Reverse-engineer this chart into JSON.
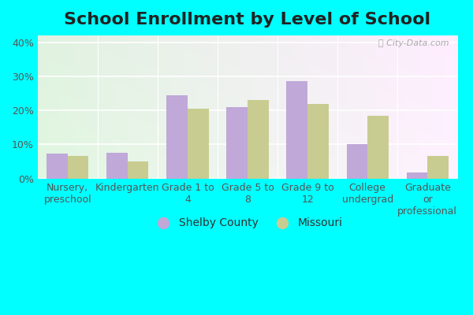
{
  "title": "School Enrollment by Level of School",
  "categories": [
    "Nursery,\npreschool",
    "Kindergarten",
    "Grade 1 to\n4",
    "Grade 5 to\n8",
    "Grade 9 to\n12",
    "College\nundergrad",
    "Graduate\nor\nprofessional"
  ],
  "shelby_values": [
    7.2,
    7.5,
    24.5,
    21.0,
    28.5,
    10.0,
    1.8
  ],
  "missouri_values": [
    6.5,
    5.0,
    20.5,
    23.0,
    21.8,
    18.5,
    6.5
  ],
  "shelby_color": "#c0a8d8",
  "missouri_color": "#c8cc90",
  "outer_bg": "#00ffff",
  "plot_bg_left": "#d8ecd8",
  "plot_bg_right": "#f8f4f4",
  "ylim": [
    0,
    42
  ],
  "yticks": [
    0,
    10,
    20,
    30,
    40
  ],
  "legend_shelby": "Shelby County",
  "legend_missouri": "Missouri",
  "title_fontsize": 16,
  "tick_fontsize": 9,
  "watermark": "ⓘ City-Data.com"
}
